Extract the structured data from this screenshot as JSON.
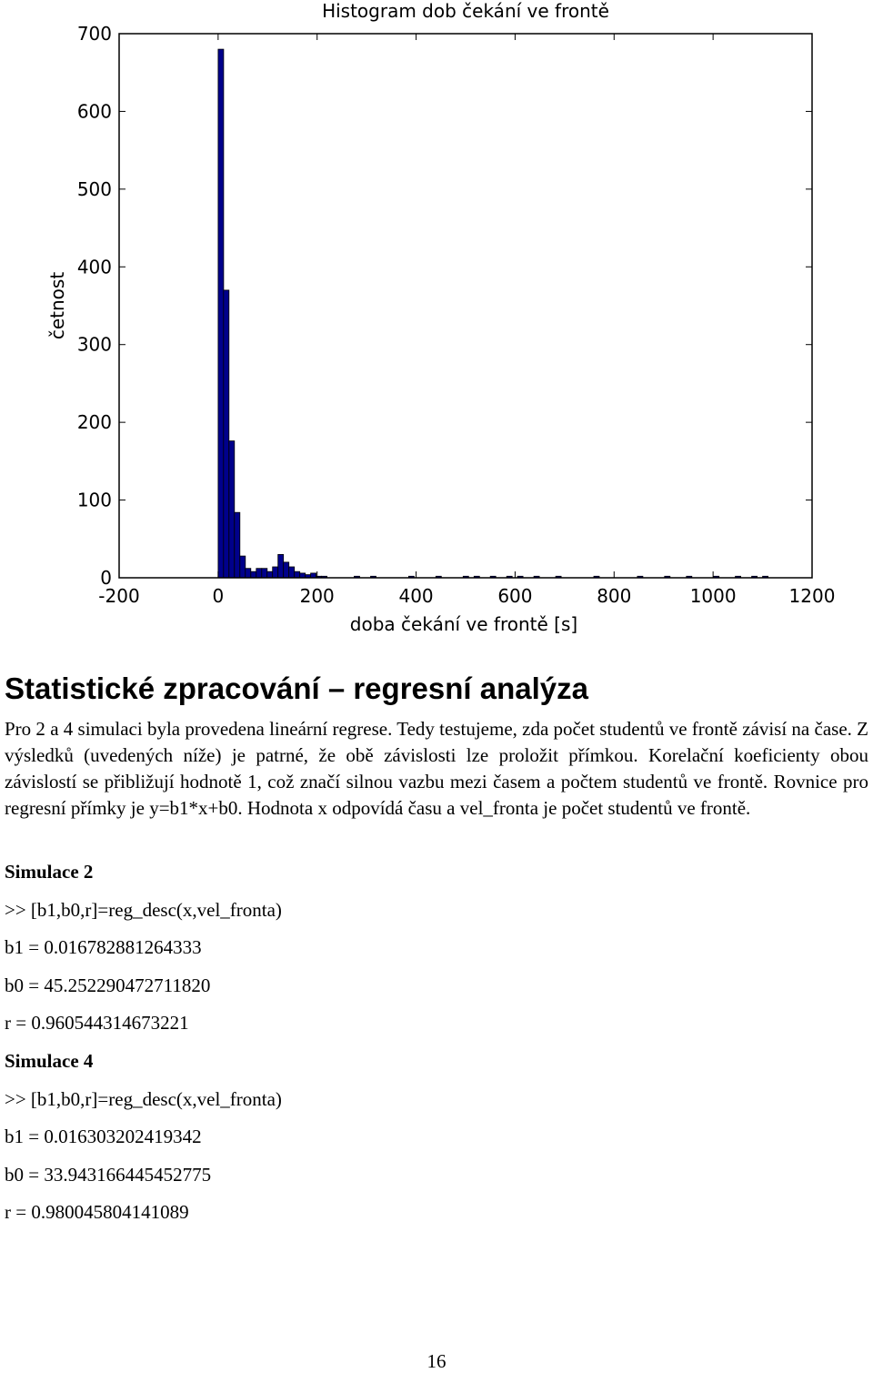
{
  "chart_data": {
    "type": "bar",
    "title": "Histogram dob čekání ve frontě",
    "xlabel": "doba čekání ve frontě [s]",
    "ylabel": "četnost",
    "xlim": [
      -200,
      1200
    ],
    "ylim": [
      0,
      700
    ],
    "xticks": [
      "-200",
      "0",
      "200",
      "400",
      "600",
      "800",
      "1000",
      "1200"
    ],
    "yticks": [
      "0",
      "100",
      "200",
      "300",
      "400",
      "500",
      "600",
      "700"
    ],
    "bar_width": 11,
    "bar_color": "#00008b",
    "x": [
      0,
      11,
      22,
      33,
      44,
      55,
      66,
      77,
      88,
      99,
      110,
      121,
      132,
      143,
      154,
      165,
      176,
      187,
      198,
      209,
      275,
      308,
      385,
      440,
      495,
      517,
      550,
      583,
      605,
      638,
      682,
      759,
      847,
      902,
      946,
      1001,
      1045,
      1078,
      1100
    ],
    "values": [
      680,
      370,
      176,
      84,
      28,
      12,
      8,
      12,
      12,
      8,
      14,
      30,
      20,
      14,
      8,
      6,
      4,
      6,
      2,
      2,
      2,
      2,
      2,
      2,
      2,
      2,
      2,
      2,
      2,
      2,
      2,
      2,
      2,
      2,
      2,
      2,
      2,
      2,
      2
    ]
  },
  "section": {
    "heading": "Statistické zpracování – regresní analýza",
    "paragraph": "Pro 2 a 4 simulaci byla provedena lineární regrese. Tedy testujeme, zda počet studentů ve frontě závisí na čase. Z výsledků (uvedených níže) je patrné, že obě závislosti lze proložit přímkou. Korelační koeficienty obou závislostí se přibližují hodnotě 1, což značí silnou vazbu mezi časem a počtem studentů ve frontě. Rovnice pro regresní přímky je y=b1*x+b0. Hodnota x odpovídá času a vel_fronta je počet studentů ve frontě."
  },
  "sim2": {
    "title": "Simulace 2",
    "command": ">> [b1,b0,r]=reg_desc(x,vel_fronta)",
    "b1": "b1 = 0.016782881264333",
    "b0": "b0 = 45.252290472711820",
    "r": "r = 0.960544314673221"
  },
  "sim4": {
    "title": "Simulace 4",
    "command": ">> [b1,b0,r]=reg_desc(x,vel_fronta)",
    "b1": "b1 = 0.016303202419342",
    "b0": "b0 = 33.943166445452775",
    "r": "r = 0.980045804141089"
  },
  "page_number": "16"
}
